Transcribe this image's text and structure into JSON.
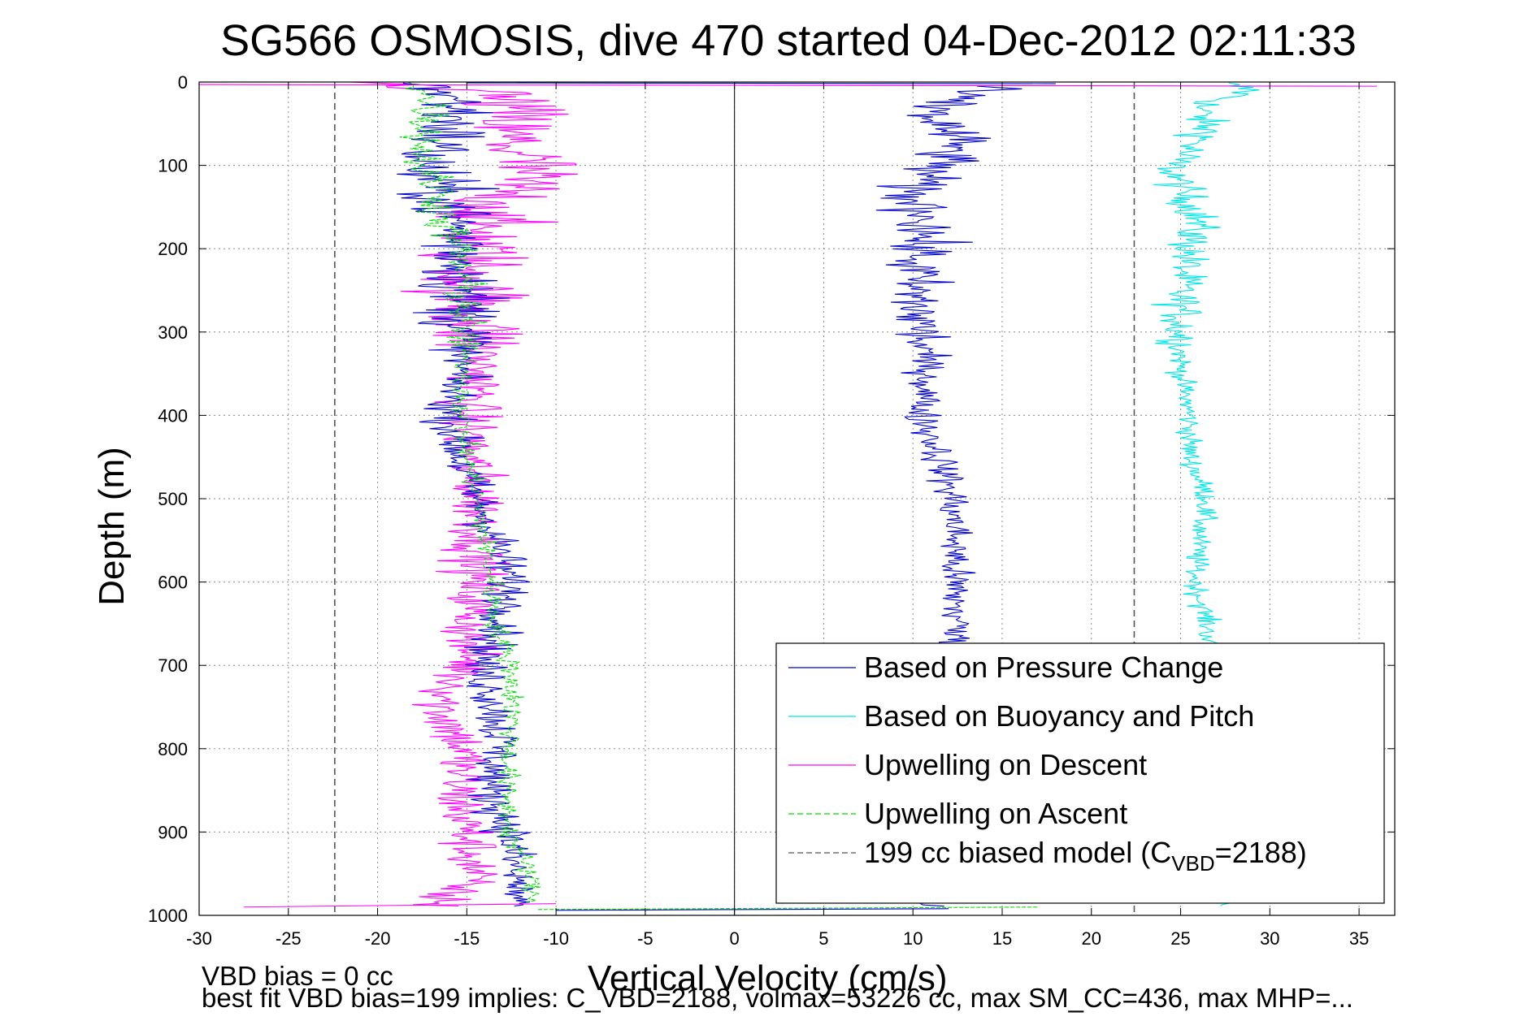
{
  "chart_data": {
    "type": "line",
    "title": "SG566 OSMOSIS, dive 470 started 04-Dec-2012 02:11:33",
    "xlabel": "Vertical Velocity (cm/s)",
    "ylabel": "Depth (m)",
    "xlim": [
      -30,
      37
    ],
    "ylim": [
      0,
      1000
    ],
    "y_reversed": true,
    "grid": true,
    "xticks": [
      -30,
      -25,
      -20,
      -15,
      -10,
      -5,
      0,
      5,
      10,
      15,
      20,
      25,
      30,
      35
    ],
    "yticks": [
      0,
      100,
      200,
      300,
      400,
      500,
      600,
      700,
      800,
      900,
      1000
    ],
    "legend_position": "bottom-right",
    "bias_model_lines": {
      "name": "199 cc biased model (C_VBD=2188)",
      "x": [
        -22.4,
        22.4
      ]
    },
    "series": [
      {
        "name": "Based on Pressure Change",
        "color": "#0000cc",
        "style": "solid",
        "descent_depth": [
          0,
          10,
          30,
          60,
          100,
          130,
          160,
          200,
          250,
          300,
          350,
          400,
          450,
          500,
          550,
          600,
          650,
          700,
          750,
          800,
          850,
          900,
          950,
          990
        ],
        "descent_x": [
          -17,
          -16.5,
          -15.5,
          -16,
          -17.5,
          -16.5,
          -15.8,
          -15.3,
          -15.1,
          -15.2,
          -15.5,
          -16,
          -15.4,
          -14.5,
          -13.3,
          -12.6,
          -12.9,
          -14.2,
          -13.4,
          -13.1,
          -13.8,
          -12.6,
          -12.3,
          -12
        ],
        "ascent_depth": [
          990,
          950,
          900,
          850,
          800,
          750,
          700,
          650,
          600,
          550,
          500,
          450,
          400,
          350,
          300,
          250,
          200,
          165,
          130,
          100,
          70,
          40,
          20,
          5
        ],
        "ascent_x": [
          11,
          12,
          12,
          12,
          11.5,
          11.5,
          12,
          12.5,
          12.3,
          12.4,
          12.2,
          11.5,
          10.5,
          10.8,
          10.5,
          10,
          10.3,
          11,
          9.5,
          11.5,
          12.5,
          11,
          12,
          14
        ]
      },
      {
        "name": "Based on Buoyancy and Pitch",
        "color": "#00e5e5",
        "style": "solid",
        "depth": [
          0,
          10,
          30,
          60,
          100,
          130,
          160,
          200,
          250,
          300,
          350,
          400,
          450,
          500,
          550,
          600,
          650,
          700,
          750,
          800,
          850,
          900,
          950,
          990
        ],
        "x": [
          27,
          29,
          26,
          26.5,
          24.5,
          25,
          26,
          25.5,
          25,
          25,
          25,
          25.5,
          25.5,
          26.5,
          26,
          25.8,
          26.5,
          26.8,
          27,
          27.2,
          27.3,
          27.4,
          27.5,
          27.5
        ]
      },
      {
        "name": "Upwelling on Descent",
        "color": "#ff00ff",
        "style": "solid",
        "depth": [
          0,
          10,
          30,
          60,
          100,
          130,
          160,
          200,
          250,
          300,
          350,
          400,
          450,
          500,
          550,
          600,
          650,
          700,
          750,
          800,
          850,
          900,
          950,
          990
        ],
        "x": [
          -22,
          -14,
          -12.5,
          -13,
          -11.5,
          -12.5,
          -14,
          -14.5,
          -14.8,
          -14.5,
          -14.2,
          -15,
          -14.8,
          -14.3,
          -14.3,
          -14.6,
          -14.8,
          -15,
          -16.5,
          -15.2,
          -15.5,
          -15,
          -14.5,
          -17
        ]
      },
      {
        "name": "Upwelling on Ascent",
        "color": "#00dd00",
        "style": "dashed",
        "depth": [
          0,
          10,
          30,
          60,
          100,
          130,
          160,
          200,
          250,
          300,
          350,
          400,
          450,
          500,
          550,
          600,
          650,
          700,
          750,
          800,
          850,
          900,
          950,
          985
        ],
        "x": [
          -17.5,
          -17.5,
          -17,
          -17.3,
          -17.5,
          -16.5,
          -16.5,
          -15.5,
          -15.2,
          -15.2,
          -15.1,
          -15.3,
          -15,
          -14.4,
          -14,
          -13.6,
          -13.4,
          -12.5,
          -12.4,
          -12.6,
          -12.8,
          -12.6,
          -11.5,
          -11.3
        ]
      }
    ],
    "legend": [
      {
        "label": "Based on Pressure Change",
        "color": "#0000cc",
        "dash": ""
      },
      {
        "label": "Based on Buoyancy and Pitch",
        "color": "#00e5e5",
        "dash": ""
      },
      {
        "label": "Upwelling on Descent",
        "color": "#ff00ff",
        "dash": ""
      },
      {
        "label": "Upwelling on Ascent",
        "color": "#00dd00",
        "dash": "7,4"
      },
      {
        "label": "199 cc biased model (C",
        "sub": "VBD",
        "tail": "=2188)",
        "color": "#555555",
        "dash": "7,4"
      }
    ]
  },
  "notes": {
    "line1": "VBD bias = 0 cc",
    "line2": "best fit VBD bias=199 implies: C_VBD=2188, volmax=53226 cc, max SM_CC=436, max MHP=..."
  }
}
